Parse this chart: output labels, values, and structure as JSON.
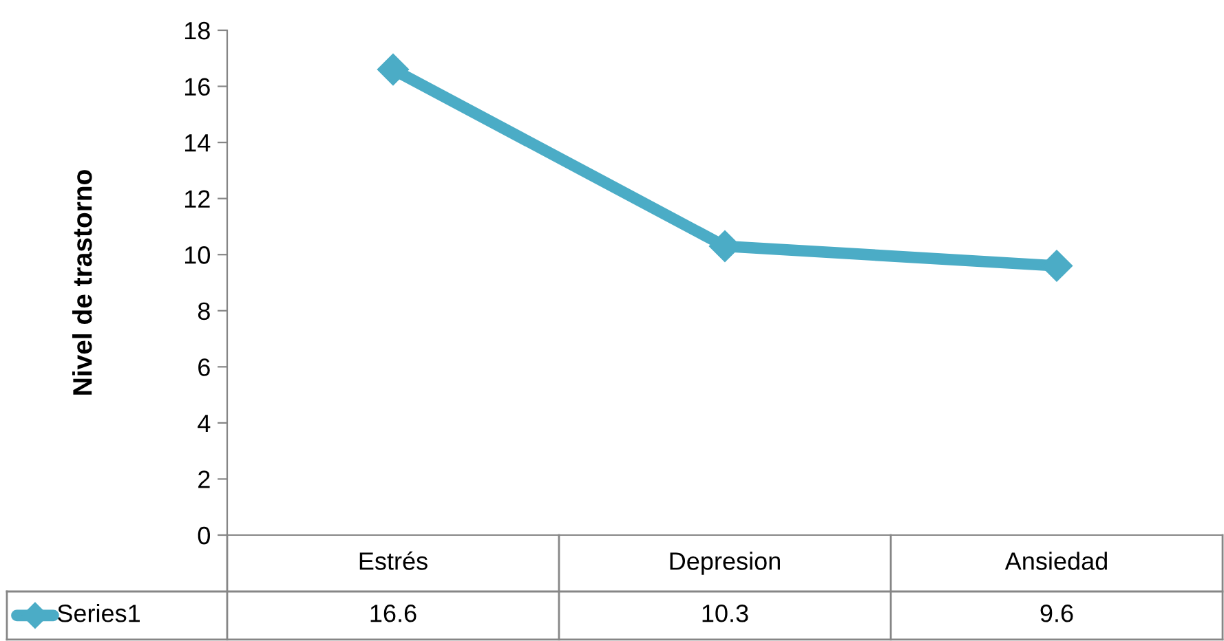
{
  "chart_data": {
    "type": "line",
    "ylabel": "Nivel de trastorno",
    "categories": [
      "Estrés",
      "Depresion",
      "Ansiedad"
    ],
    "series": [
      {
        "name": "Series1",
        "color": "#4bacc6",
        "values": [
          16.6,
          10.3,
          9.6
        ]
      }
    ],
    "ylim": [
      0,
      18
    ],
    "yticks": [
      0,
      2,
      4,
      6,
      8,
      10,
      12,
      14,
      16,
      18
    ],
    "marker": "diamond",
    "line_style": "solid",
    "grid": false,
    "data_labels": true,
    "legend": "bottom left"
  }
}
